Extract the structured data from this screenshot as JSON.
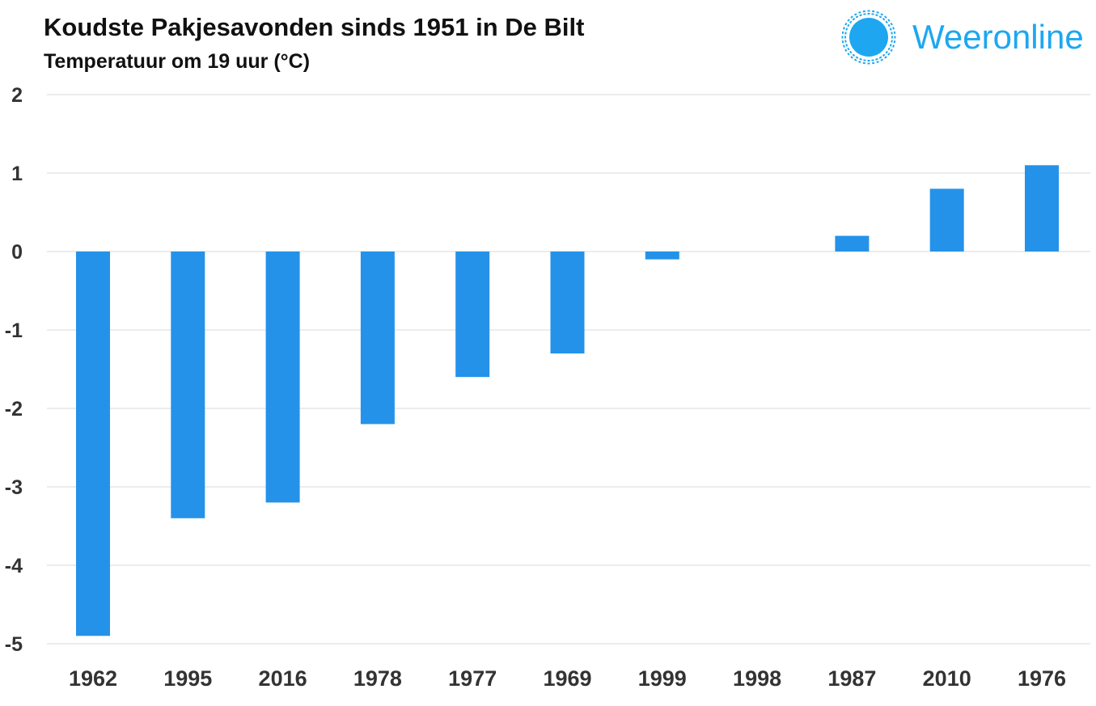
{
  "brand": {
    "name": "Weeronline",
    "logo_icon": "sun-icon",
    "color": "#1ea7f0"
  },
  "chart_data": {
    "type": "bar",
    "title": "Koudste Pakjesavonden sinds 1951 in De Bilt",
    "subtitle": "Temperatuur om 19 uur (°C)",
    "categories": [
      "1962",
      "1995",
      "2016",
      "1978",
      "1977",
      "1969",
      "1999",
      "1998",
      "1987",
      "2010",
      "1976"
    ],
    "values": [
      -4.9,
      -3.4,
      -3.2,
      -2.2,
      -1.6,
      -1.3,
      -0.1,
      0.0,
      0.2,
      0.8,
      1.1
    ],
    "ylim": [
      -5,
      2
    ],
    "yticks": [
      "2",
      "1",
      "0",
      "-1",
      "-2",
      "-3",
      "-4",
      "-5"
    ],
    "bar_color": "#2592ea",
    "grid": true,
    "legend": "none"
  }
}
